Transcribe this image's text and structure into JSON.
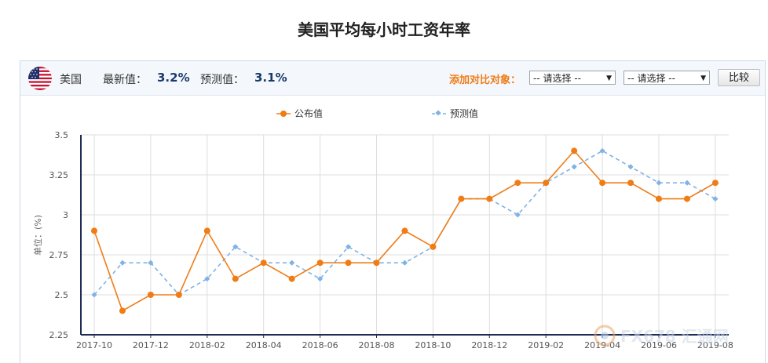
{
  "page": {
    "title": "美国平均每小时工资年率"
  },
  "header": {
    "country": "美国",
    "latest_label": "最新值：",
    "latest_value": "3.2%",
    "forecast_label": "预测值：",
    "forecast_value": "3.1%",
    "compare_label": "添加对比对象：",
    "select1": "-- 请选择 --",
    "select2": "-- 请选择 --",
    "compare_button": "比较"
  },
  "watermark": {
    "text": "FX678 汇通网"
  },
  "colors": {
    "published": "#f07c16",
    "forecast": "#7fb2e5",
    "axis": "#1f2a55",
    "grid": "#dddddd"
  },
  "chart_data": {
    "type": "line",
    "title": "",
    "ylabel": "单位：(%)",
    "ylim": [
      2.25,
      3.5
    ],
    "yticks": [
      2.25,
      2.5,
      2.75,
      3,
      3.25,
      3.5
    ],
    "ytick_labels": [
      "2.25",
      "2.5",
      "2.75",
      "3",
      "3.25",
      "3.5"
    ],
    "categories": [
      "2017-10",
      "2017-11",
      "2017-12",
      "2018-01",
      "2018-02",
      "2018-03",
      "2018-04",
      "2018-05",
      "2018-06",
      "2018-07",
      "2018-08",
      "2018-09",
      "2018-10",
      "2018-11",
      "2018-12",
      "2019-01",
      "2019-02",
      "2019-03",
      "2019-04",
      "2019-05",
      "2019-06",
      "2019-07",
      "2019-08"
    ],
    "xtick_labels": [
      "2017-10",
      "2017-12",
      "2018-02",
      "2018-04",
      "2018-06",
      "2018-08",
      "2018-10",
      "2018-12",
      "2019-02",
      "2019-04",
      "2019-06",
      "2019-08"
    ],
    "legend_position": "top-center",
    "grid": true,
    "series": [
      {
        "name": "公布值",
        "style": "solid",
        "values": [
          2.9,
          2.4,
          2.5,
          2.5,
          2.9,
          2.6,
          2.7,
          2.6,
          2.7,
          2.7,
          2.7,
          2.9,
          2.8,
          3.1,
          3.1,
          3.2,
          3.2,
          3.4,
          3.2,
          3.2,
          3.1,
          3.1,
          3.2
        ]
      },
      {
        "name": "预测值",
        "style": "dashed",
        "values": [
          2.5,
          2.7,
          2.7,
          2.5,
          2.6,
          2.8,
          2.7,
          2.7,
          2.6,
          2.8,
          2.7,
          2.7,
          2.8,
          3.1,
          3.1,
          3.0,
          3.2,
          3.3,
          3.4,
          3.3,
          3.2,
          3.2,
          3.1
        ]
      }
    ]
  }
}
